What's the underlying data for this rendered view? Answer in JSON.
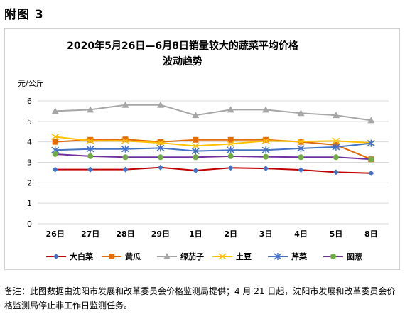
{
  "figure_label": "附图 3",
  "chart_data": {
    "type": "line",
    "title_line1": "2020年5月26日—6月8日销量较大的蔬菜平均价格",
    "title_line2": "波动趋势",
    "ylabel": "元/公斤",
    "xlabel": "",
    "ylim": [
      0,
      6
    ],
    "yticks": [
      "0",
      "1",
      "2",
      "3",
      "4",
      "5",
      "6"
    ],
    "grid": true,
    "legend_position": "bottom",
    "categories": [
      "26日",
      "27日",
      "28日",
      "29日",
      "1日",
      "2日",
      "3日",
      "4日",
      "5日",
      "8日"
    ],
    "series": [
      {
        "name": "大白菜",
        "color": "#c00000",
        "marker": "diamond",
        "marker_color": "#4472c4",
        "values": [
          2.65,
          2.65,
          2.65,
          2.75,
          2.6,
          2.73,
          2.7,
          2.63,
          2.52,
          2.47
        ]
      },
      {
        "name": "黄瓜",
        "color": "#e36c09",
        "marker": "square",
        "marker_color": "#e36c09",
        "values": [
          4.0,
          4.1,
          4.12,
          4.0,
          4.1,
          4.1,
          4.1,
          4.0,
          3.85,
          3.15
        ]
      },
      {
        "name": "绿茄子",
        "color": "#a6a6a6",
        "marker": "triangle",
        "marker_color": "#a6a6a6",
        "values": [
          5.5,
          5.57,
          5.8,
          5.8,
          5.3,
          5.57,
          5.57,
          5.4,
          5.3,
          5.05
        ]
      },
      {
        "name": "土豆",
        "color": "#ffc000",
        "marker": "x",
        "marker_color": "#ffc000",
        "values": [
          4.25,
          4.05,
          4.05,
          3.95,
          3.8,
          3.9,
          4.05,
          4.02,
          4.05,
          3.95
        ]
      },
      {
        "name": "芹菜",
        "color": "#4472c4",
        "marker": "star",
        "marker_color": "#4472c4",
        "values": [
          3.6,
          3.65,
          3.65,
          3.7,
          3.55,
          3.6,
          3.6,
          3.68,
          3.75,
          3.93
        ]
      },
      {
        "name": "圆葱",
        "color": "#7030a0",
        "marker": "circle",
        "marker_color": "#70ad47",
        "values": [
          3.4,
          3.3,
          3.25,
          3.25,
          3.25,
          3.3,
          3.27,
          3.25,
          3.25,
          3.15
        ]
      }
    ]
  },
  "note": "备注：此图数据由沈阳市发展和改革委员会价格监测局提供；4 月 21 日起，沈阳市发展和改革委员会价格监测局停止非工作日监测任务。"
}
